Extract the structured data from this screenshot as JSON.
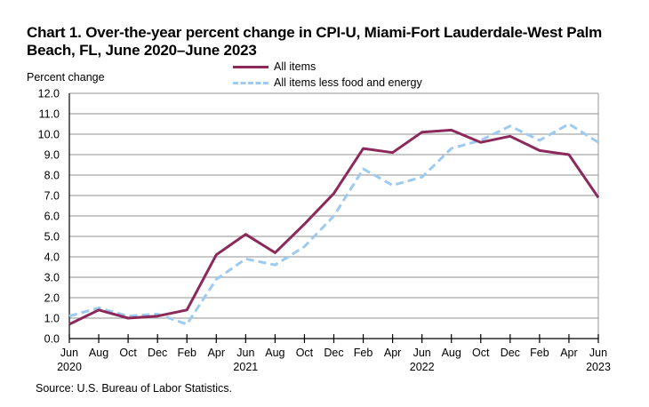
{
  "chart_data": {
    "type": "line",
    "title": "Chart 1. Over-the-year percent change in CPI-U, Miami-Fort Lauderdale-West Palm Beach, FL, June 2020–June 2023",
    "title_lines": [
      "Chart 1. Over-the-year percent change in CPI-U, Miami-Fort Lauderdale-West Palm",
      "Beach, FL, June 2020–June 2023"
    ],
    "ylabel": "Percent change",
    "xlabel": "",
    "ylim": [
      0,
      12
    ],
    "yticks": [
      "0.0",
      "1.0",
      "2.0",
      "3.0",
      "4.0",
      "5.0",
      "6.0",
      "7.0",
      "8.0",
      "9.0",
      "10.0",
      "11.0",
      "12.0"
    ],
    "grid": true,
    "legend_position": "top-center",
    "categories": [
      "Jun",
      "Aug",
      "Oct",
      "Dec",
      "Feb",
      "Apr",
      "Jun",
      "Aug",
      "Oct",
      "Dec",
      "Feb",
      "Apr",
      "Jun",
      "Aug",
      "Oct",
      "Dec",
      "Feb",
      "Apr",
      "Jun"
    ],
    "year_labels": [
      {
        "index": 0,
        "label": "2020"
      },
      {
        "index": 6,
        "label": "2021"
      },
      {
        "index": 12,
        "label": "2022"
      },
      {
        "index": 18,
        "label": "2023"
      }
    ],
    "series": [
      {
        "name": "All items",
        "color": "#8b2a5a",
        "style": "solid",
        "values": [
          0.7,
          1.4,
          1.0,
          1.1,
          1.4,
          4.1,
          5.1,
          4.2,
          5.6,
          7.1,
          9.3,
          9.1,
          10.1,
          10.2,
          9.6,
          9.9,
          9.2,
          9.0,
          6.9
        ]
      },
      {
        "name": "All items less food and energy",
        "color": "#9ccaf0",
        "style": "dashed",
        "values": [
          1.1,
          1.5,
          1.1,
          1.2,
          0.7,
          2.9,
          3.9,
          3.6,
          4.5,
          6.0,
          8.3,
          7.5,
          7.9,
          9.3,
          9.7,
          10.4,
          9.7,
          10.5,
          9.6
        ]
      }
    ],
    "source": "Source: U.S. Bureau of Labor Statistics."
  }
}
